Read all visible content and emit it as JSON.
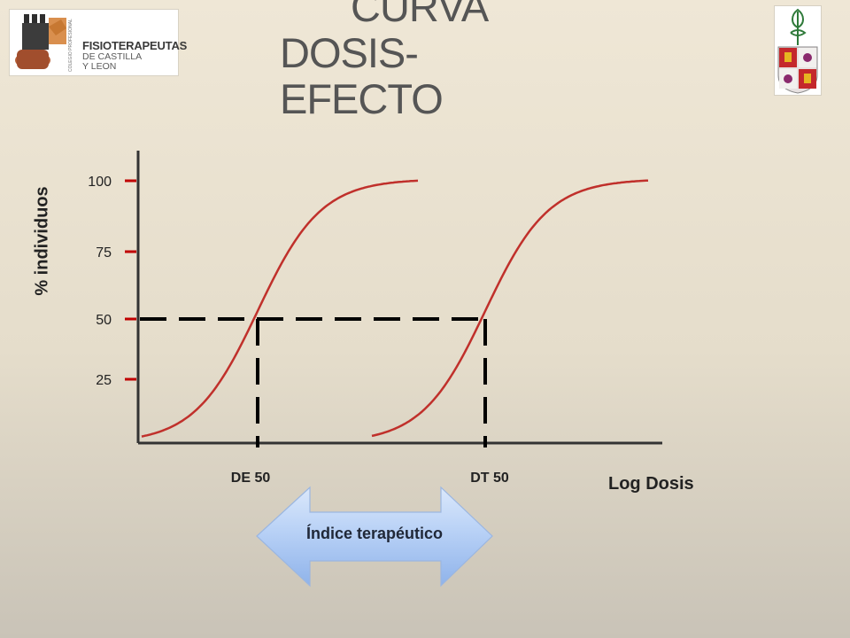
{
  "slide": {
    "title_lines": [
      "CURVA",
      "DOSIS-",
      "EFECTO"
    ]
  },
  "logo_left": {
    "name": "FISIOTERAPEUTAS",
    "subtitle_lines": [
      "DE CASTILLA",
      "Y LEON"
    ],
    "vertical_text": "COLEGIO PROFESIONAL"
  },
  "logo_right": {
    "description_icon": "castilla-leon-coat-of-arms-icon"
  },
  "chart_data": {
    "type": "line",
    "ylabel": "% individuos",
    "xlabel": "Log Dosis",
    "ytick_labels": [
      "100",
      "75",
      "50",
      "25"
    ],
    "yticks": [
      100,
      75,
      50,
      25
    ],
    "ylim": [
      0,
      100
    ],
    "x_markers": [
      "DE 50",
      "DT 50"
    ],
    "series": [
      {
        "color": "#c0302b",
        "midpoint": "DE 50"
      },
      {
        "color": "#c0302b",
        "midpoint": "DT 50"
      }
    ],
    "grid": false,
    "annotation": "Índice terapéutico",
    "colors": {
      "curve": "#c0302b",
      "axis": "#333333",
      "tick_mark": "#c00000",
      "dashes": "#000000",
      "arrow": "#a9c6f3"
    }
  }
}
